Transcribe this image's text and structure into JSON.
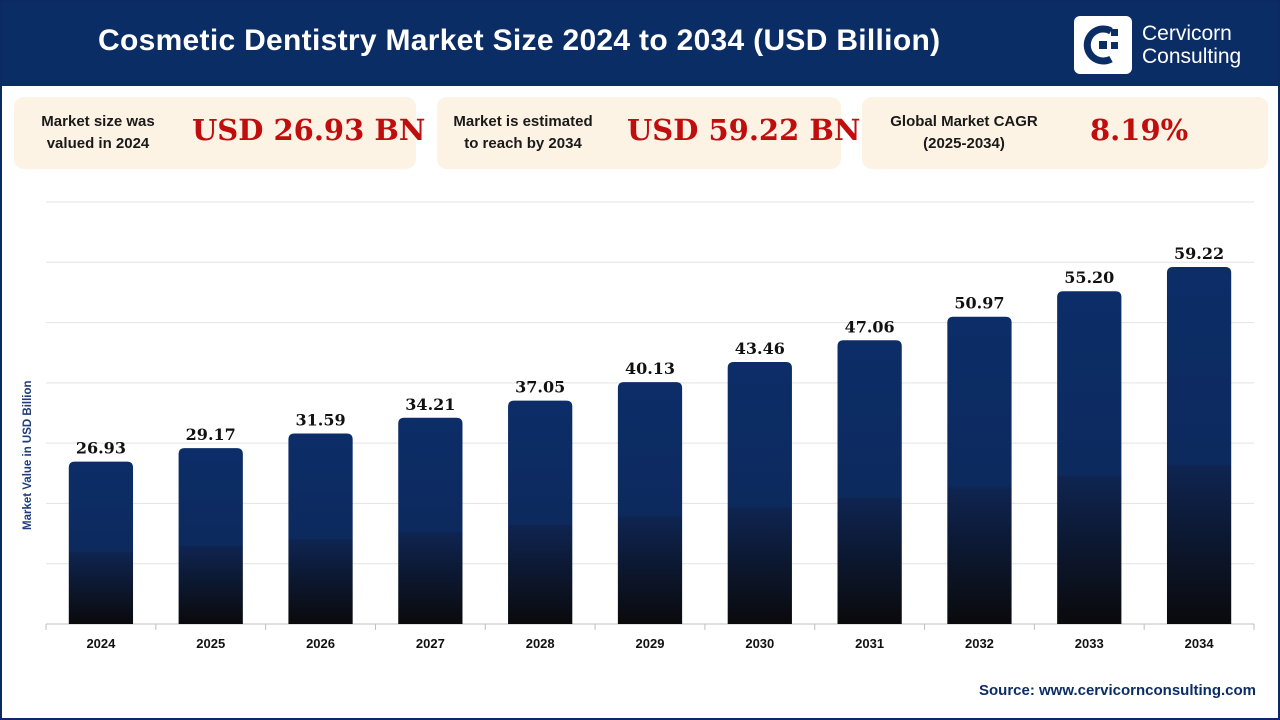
{
  "header": {
    "title": "Cosmetic Dentistry Market Size 2024 to 2034 (USD Billion)"
  },
  "logo": {
    "line1": "Cervicorn",
    "line2": "Consulting",
    "icon": "cervicorn-logo-icon"
  },
  "cards": [
    {
      "label_line1": "Market size was",
      "label_line2": "valued in 2024",
      "value": "USD 26.93 BN"
    },
    {
      "label_line1": "Market is estimated",
      "label_line2": "to reach by 2034",
      "value": "USD 59.22 BN"
    },
    {
      "label_line1": "Global Market CAGR",
      "label_line2": "(2025-2034)",
      "value": "8.19%"
    }
  ],
  "colors": {
    "header_bg": "#0b2d66",
    "card_bg": "#fdf3e4",
    "value_red": "#c00d0d",
    "bar_top": "#0c2d68",
    "bar_bottom": "#0a0a0c"
  },
  "chart_data": {
    "type": "bar",
    "title": "Cosmetic Dentistry Market Size 2024 to 2034 (USD Billion)",
    "xlabel": "",
    "ylabel": "Market Value in USD Billion",
    "categories": [
      "2024",
      "2025",
      "2026",
      "2027",
      "2028",
      "2029",
      "2030",
      "2031",
      "2032",
      "2033",
      "2034"
    ],
    "values": [
      26.93,
      29.17,
      31.59,
      34.21,
      37.05,
      40.13,
      43.46,
      47.06,
      50.97,
      55.2,
      59.22
    ],
    "value_labels": [
      "26.93",
      "29.17",
      "31.59",
      "34.21",
      "37.05",
      "40.13",
      "43.46",
      "47.06",
      "50.97",
      "55.20",
      "59.22"
    ],
    "ylim": [
      0,
      70
    ],
    "grid": true,
    "legend": "none"
  },
  "source": "Source: www.cervicornconsulting.com"
}
